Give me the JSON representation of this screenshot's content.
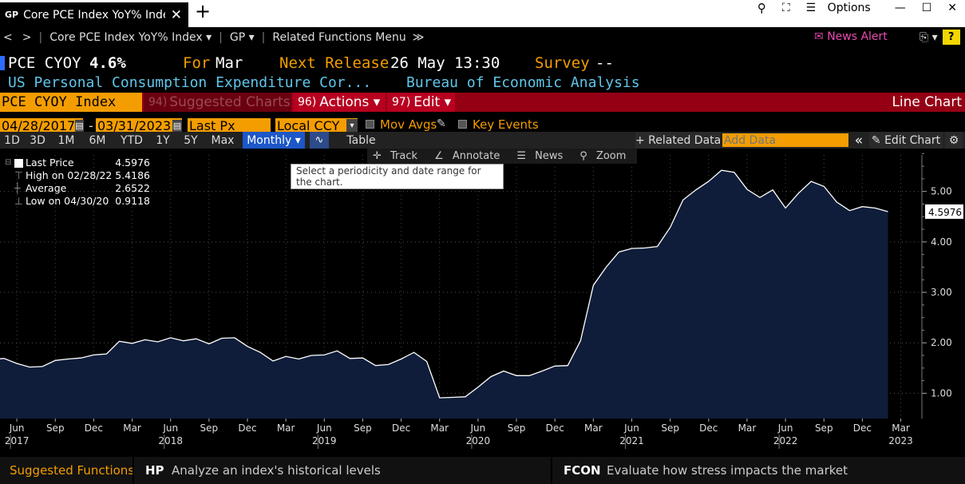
{
  "window": {
    "tab_badge": "GP",
    "tab_title": "Core PCE Index YoY% Index",
    "close_glyph": "✕",
    "new_tab_glyph": "+",
    "options_label": "Options",
    "minimize_glyph": "—",
    "maximize_glyph": "☐",
    "close_window_glyph": "✕"
  },
  "nav": {
    "back_glyph": "<",
    "forward_glyph": ">",
    "security": "Core PCE Index YoY% Index ▾",
    "function": "GP ▾",
    "related": "Related Functions Menu",
    "related_chevron": "≫",
    "news_alert": "News Alert",
    "help": "?"
  },
  "header": {
    "ticker": "PCE CYOY",
    "value": "4.6%",
    "for_label": "For",
    "for_value": "Mar",
    "next_release_label": "Next Release",
    "next_release_value": "26 May 13:30",
    "survey_label": "Survey",
    "survey_value": "--",
    "name": "US Personal Consumption Expenditure Cor...",
    "source": "Bureau of Economic Analysis"
  },
  "function_row": {
    "security_field": "PCE CYOY Index",
    "suggested_num": "94)",
    "suggested": "Suggested Charts",
    "actions_num": "96)",
    "actions": "Actions ▾",
    "edit_num": "97)",
    "edit": "Edit ▾",
    "chart_type": "Line Chart"
  },
  "settings": {
    "start_date": "04/28/2017",
    "end_date": "03/31/2023",
    "date_sep": "-",
    "field": "Last Px",
    "currency": "Local CCY",
    "mov_avgs": "Mov Avgs",
    "key_events": "Key Events"
  },
  "range": {
    "buttons": [
      "1D",
      "3D",
      "1M",
      "6M",
      "YTD",
      "1Y",
      "5Y",
      "Max"
    ],
    "periodicity": "Monthly ▾",
    "table": "Table",
    "related_data": "+ Related Data",
    "add_data_placeholder": "Add Data",
    "collapse": "«",
    "edit_chart": "Edit Chart"
  },
  "tools": {
    "track": "Track",
    "annotate": "Annotate",
    "news": "News",
    "zoom": "Zoom",
    "tooltip": "Select a periodicity and date range for the chart."
  },
  "legend": {
    "last_label": "Last Price",
    "last_value": "4.5976",
    "high_label": "High on 02/28/22",
    "high_value": "5.4186",
    "avg_label": "Average",
    "avg_value": "2.6522",
    "low_label": "Low on 04/30/20",
    "low_value": "0.9118"
  },
  "chart_data": {
    "type": "area",
    "series": [
      {
        "name": "Last Price",
        "start": "2017-04",
        "values": [
          1.67,
          1.69,
          1.59,
          1.52,
          1.53,
          1.65,
          1.68,
          1.7,
          1.76,
          1.78,
          2.03,
          1.99,
          2.06,
          2.02,
          2.1,
          2.04,
          2.08,
          1.98,
          2.09,
          2.1,
          1.93,
          1.81,
          1.64,
          1.73,
          1.68,
          1.75,
          1.76,
          1.84,
          1.69,
          1.7,
          1.55,
          1.57,
          1.68,
          1.81,
          1.63,
          0.91,
          0.92,
          0.93,
          1.12,
          1.33,
          1.44,
          1.35,
          1.35,
          1.44,
          1.54,
          1.55,
          2.04,
          3.14,
          3.5,
          3.8,
          3.87,
          3.88,
          3.91,
          4.29,
          4.83,
          5.03,
          5.2,
          5.42,
          5.38,
          5.04,
          4.88,
          5.03,
          4.67,
          4.96,
          5.2,
          5.1,
          4.79,
          4.62,
          4.7,
          4.67,
          4.6
        ],
        "fill": "#0f1d3a",
        "stroke": "#ffffff"
      }
    ],
    "last_value_label": "4.5976",
    "ylim": [
      0.5,
      5.85
    ],
    "yticks": [
      "1.00",
      "2.00",
      "3.00",
      "4.00",
      "5.00"
    ],
    "xticks": [
      {
        "month": "Jun",
        "year": "2017"
      },
      {
        "month": "Sep"
      },
      {
        "month": "Dec"
      },
      {
        "month": "Mar"
      },
      {
        "month": "Jun",
        "year": "2018"
      },
      {
        "month": "Sep"
      },
      {
        "month": "Dec"
      },
      {
        "month": "Mar"
      },
      {
        "month": "Jun",
        "year": "2019"
      },
      {
        "month": "Sep"
      },
      {
        "month": "Dec"
      },
      {
        "month": "Mar"
      },
      {
        "month": "Jun",
        "year": "2020"
      },
      {
        "month": "Sep"
      },
      {
        "month": "Dec"
      },
      {
        "month": "Mar"
      },
      {
        "month": "Jun",
        "year": "2021"
      },
      {
        "month": "Sep"
      },
      {
        "month": "Dec"
      },
      {
        "month": "Mar"
      },
      {
        "month": "Jun",
        "year": "2022"
      },
      {
        "month": "Sep"
      },
      {
        "month": "Dec"
      },
      {
        "month": "Mar",
        "year": "2023"
      }
    ],
    "grid": true
  },
  "footer": {
    "suggested": "Suggested Functions",
    "hp_code": "HP",
    "hp_desc": "Analyze an index's historical levels",
    "fcon_code": "FCON",
    "fcon_desc": "Evaluate how stress impacts the market"
  },
  "colors": {
    "accent": "#f39d00",
    "function_bar": "#950014",
    "news": "#e84ab1",
    "header_cyan": "#5fc6ea"
  }
}
